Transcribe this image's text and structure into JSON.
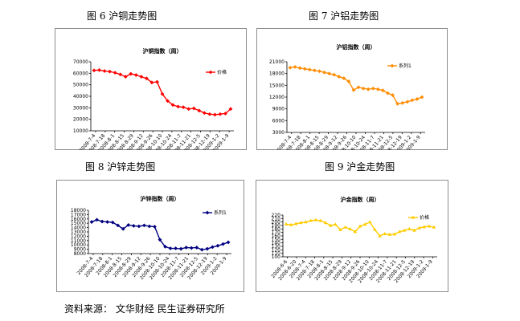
{
  "captions": {
    "fig6": "图 6  沪铜走势图",
    "fig7": "图 7  沪铝走势图",
    "fig8": "图 8 沪锌走势图",
    "fig9": "图 9  沪金走势图"
  },
  "source": "资料来源： 文华财经  民生证券研究所",
  "chart_data": [
    {
      "id": "copper",
      "type": "line",
      "title": "沪铜指数（周）",
      "legend": "价格",
      "color": "#ff0000",
      "marker": "diamond",
      "ylim": [
        10000,
        70000
      ],
      "yticks": [
        10000,
        20000,
        30000,
        40000,
        50000,
        60000,
        70000
      ],
      "xticks": [
        "2008-7-4",
        "2008-7-18",
        "2008-8-1",
        "2008-8-15",
        "2008-8-29",
        "2008-9-12",
        "2008-9-26",
        "2008-10-10",
        "2008-10-24",
        "2008-11-7",
        "2008-11-21",
        "2008-12-5",
        "2008-12-19",
        "2009-1-2",
        "2009-1-9"
      ],
      "values": [
        62500,
        62800,
        62000,
        61500,
        60500,
        59000,
        57000,
        59500,
        58500,
        57000,
        55500,
        52000,
        52500,
        42000,
        36000,
        32500,
        31000,
        30500,
        29000,
        29500,
        27500,
        25500,
        24500,
        24000,
        24500,
        25000,
        29000
      ]
    },
    {
      "id": "aluminum",
      "type": "line",
      "title": "沪铝指数（周）",
      "legend": "系列1",
      "color": "#ff8c00",
      "marker": "diamond",
      "ylim": [
        3000,
        21000
      ],
      "yticks": [
        3000,
        6000,
        9000,
        12000,
        15000,
        18000,
        21000
      ],
      "xticks": [
        "2008-7-4",
        "2008-7-18",
        "2008-8-1",
        "2008-8-15",
        "2008-8-29",
        "2008-9-12",
        "2008-9-26",
        "2008-10-10",
        "2008-10-24",
        "2008-11-7",
        "2008-11-21",
        "2008-12-5",
        "2008-12-19",
        "2009-1-2",
        "2009-1-9"
      ],
      "values": [
        19500,
        19700,
        19400,
        19200,
        19000,
        18800,
        18600,
        18300,
        18000,
        17700,
        17200,
        16800,
        16000,
        13800,
        14500,
        14200,
        14000,
        14200,
        14000,
        13700,
        13000,
        12500,
        10300,
        10500,
        10800,
        11200,
        11500,
        12000
      ]
    },
    {
      "id": "zinc",
      "type": "line",
      "title": "沪锌指数（周）",
      "legend": "系列1",
      "color": "#000080",
      "marker": "diamond",
      "ylim": [
        8000,
        18000
      ],
      "yticks": [
        8000,
        9000,
        10000,
        11000,
        12000,
        13000,
        14000,
        15000,
        16000,
        17000,
        18000
      ],
      "xticks": [
        "2008-7-4",
        "2008-7-18",
        "2008-8-1",
        "2008-8-15",
        "2008-8-29",
        "2008-9-12",
        "2008-9-26",
        "2008-10-10",
        "2008-10-24",
        "2008-11-7",
        "2008-11-21",
        "2008-12-5",
        "2008-12-19",
        "2009-1-2",
        "2009-1-9"
      ],
      "values": [
        15300,
        15800,
        15400,
        15300,
        15200,
        14500,
        13700,
        14600,
        14400,
        14300,
        14500,
        14300,
        14200,
        11200,
        9600,
        9200,
        9200,
        9100,
        9400,
        9300,
        9400,
        8900,
        9100,
        9500,
        9800,
        10200,
        10600
      ]
    },
    {
      "id": "gold",
      "type": "line",
      "title": "沪金指数（周）",
      "legend": "价格",
      "color": "#ffcc00",
      "marker": "triangle",
      "ylim": [
        100,
        220
      ],
      "yticks": [
        100,
        110,
        120,
        130,
        140,
        150,
        160,
        170,
        180,
        190,
        200,
        210,
        220
      ],
      "xticks": [
        "2008-6-6",
        "2008-6-20",
        "2008-7-4",
        "2008-7-18",
        "2008-8-1",
        "2008-8-15",
        "2008-8-29",
        "2008-9-12",
        "2008-9-26",
        "2008-10-10",
        "2008-10-24",
        "2008-11-7",
        "2008-11-21",
        "2008-12-5",
        "2008-12-19",
        "2009-1-2",
        "2009-1-9"
      ],
      "values": [
        194,
        192,
        195,
        198,
        200,
        204,
        206,
        204,
        198,
        190,
        193,
        178,
        185,
        180,
        172,
        188,
        193,
        200,
        178,
        160,
        166,
        164,
        165,
        172,
        176,
        180,
        176,
        183,
        186,
        188,
        185
      ]
    }
  ]
}
